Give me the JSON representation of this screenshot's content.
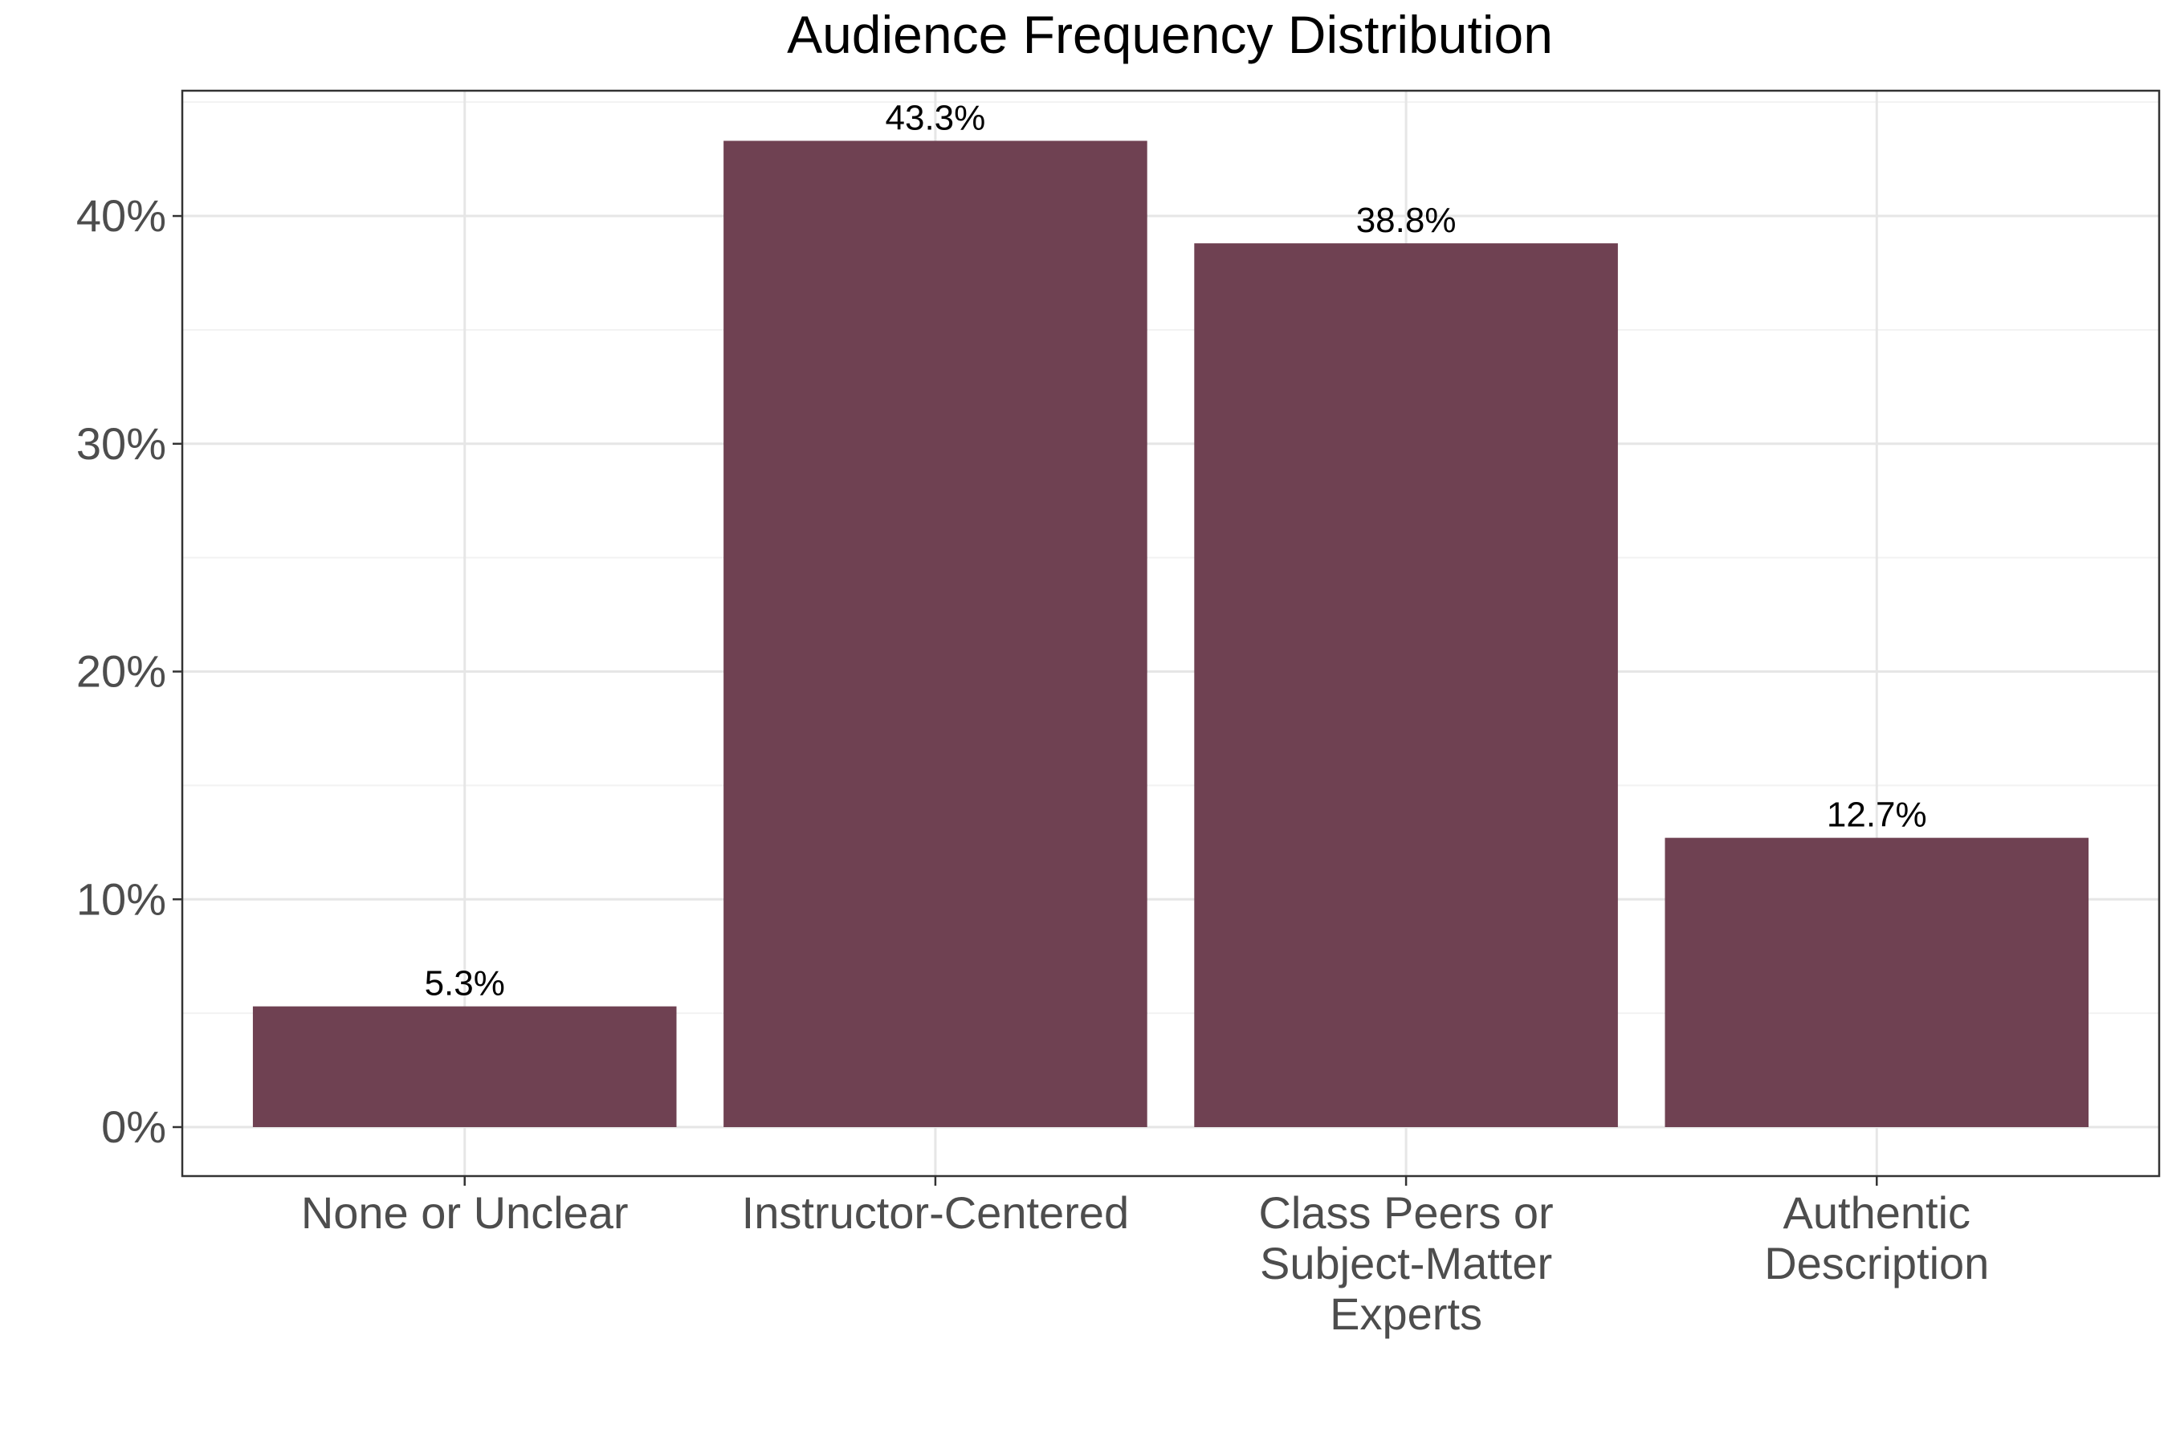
{
  "colors": {
    "bar": "#6f4152",
    "grid_major": "#e6e6e6",
    "grid_minor": "#f2f2f2",
    "panel_border": "#333333",
    "tick_text": "#4d4d4d",
    "title_text": "#000000"
  },
  "chart_data": {
    "type": "bar",
    "title": "Audience Frequency Distribution",
    "xlabel": "",
    "ylabel": "",
    "categories": [
      [
        "None or Unclear"
      ],
      [
        "Instructor-Centered"
      ],
      [
        "Class Peers or",
        "Subject-Matter",
        "Experts"
      ],
      [
        "Authentic",
        "Description"
      ]
    ],
    "values": [
      5.3,
      43.3,
      38.8,
      12.7
    ],
    "value_labels": [
      "5.3%",
      "43.3%",
      "38.8%",
      "12.7%"
    ],
    "ylim": [
      -2.15,
      45.5
    ],
    "yticks": [
      0,
      10,
      20,
      30,
      40
    ],
    "ytick_labels": [
      "0%",
      "10%",
      "20%",
      "30%",
      "40%"
    ],
    "grid": true,
    "legend": "none"
  }
}
